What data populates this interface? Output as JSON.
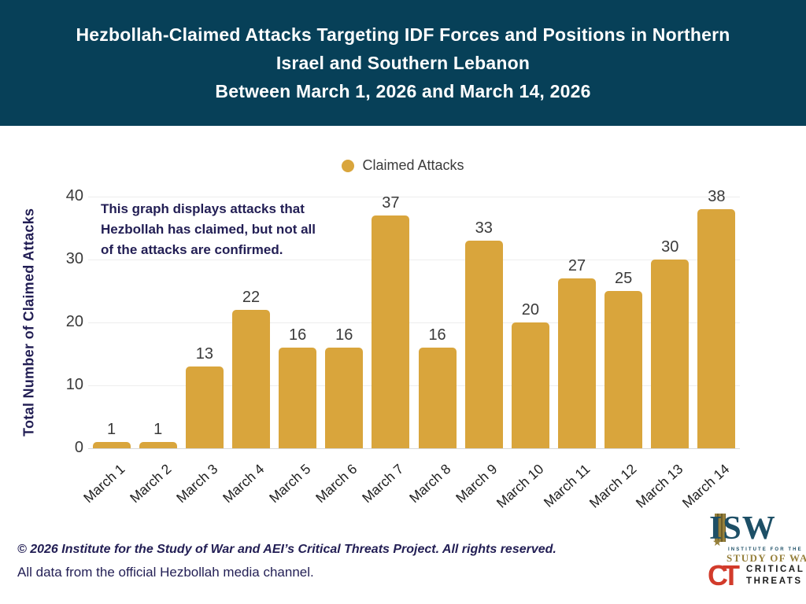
{
  "header": {
    "title_lines": [
      "Hezbollah-Claimed Attacks Targeting IDF Forces and Positions in Northern",
      "Israel and Southern Lebanon",
      "Between March 1, 2026 and March 14, 2026"
    ],
    "bg_color": "#074058"
  },
  "legend": {
    "label": "Claimed Attacks",
    "dot_color": "#d9a53c"
  },
  "annotation": {
    "lines": [
      "This graph displays attacks that",
      "Hezbollah has claimed, but not all",
      "of the attacks are confirmed."
    ]
  },
  "chart_data": {
    "type": "bar",
    "categories": [
      "March 1",
      "March 2",
      "March 3",
      "March 4",
      "March 5",
      "March 6",
      "March 7",
      "March 8",
      "March 9",
      "March 10",
      "March 11",
      "March 12",
      "March 13",
      "March 14"
    ],
    "values": [
      1,
      1,
      13,
      22,
      16,
      16,
      37,
      16,
      33,
      20,
      27,
      25,
      30,
      38
    ],
    "series_name": "Claimed Attacks",
    "title": "",
    "xlabel": "",
    "ylabel": "Total Number of Claimed Attacks",
    "ylim": [
      0,
      40
    ],
    "yticks": [
      0,
      10,
      20,
      30,
      40
    ],
    "bar_color": "#d9a53c",
    "grid": true,
    "legend_position": "top",
    "value_labels": true
  },
  "footer": {
    "line1": "© 2026 Institute for the Study of War and AEI’s Critical Threats Project. All rights reserved.",
    "line2": "All data from the official Hezbollah media channel."
  },
  "logos": {
    "isw": {
      "acronym": "ISW",
      "sub1": "INSTITUTE FOR THE",
      "sub2": "STUDY OF WAR"
    },
    "ct": {
      "monogram": "CT",
      "word1": "CRITICAL",
      "word2": "THREATS"
    }
  }
}
